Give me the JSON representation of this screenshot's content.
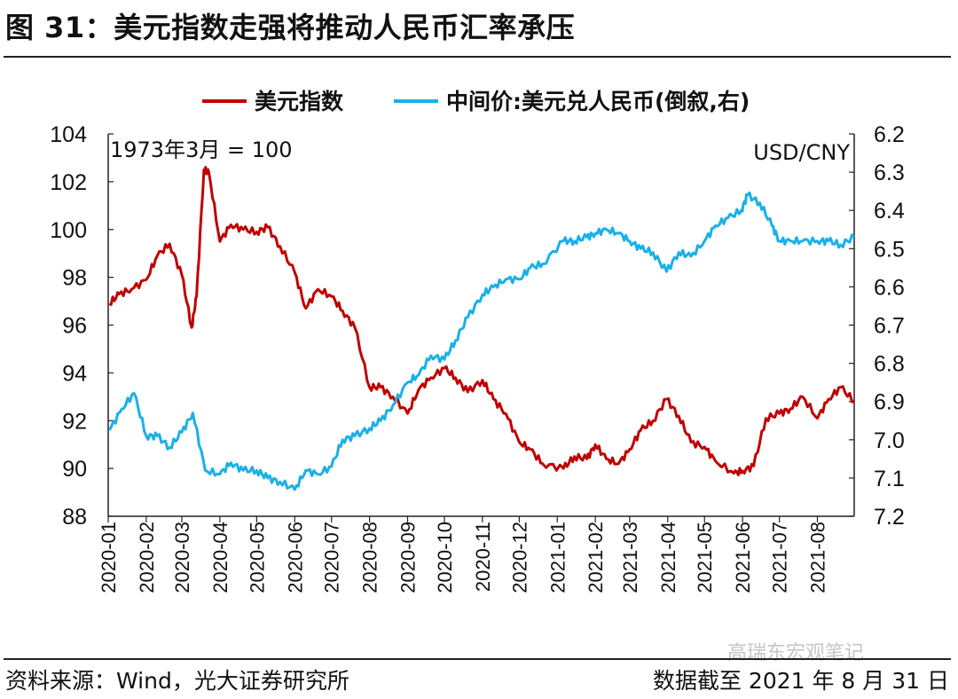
{
  "header": {
    "title": "图 31：美元指数走强将推动人民币汇率承压"
  },
  "footer": {
    "source": "资料来源：Wind，光大证券研究所",
    "date_note": "数据截至 2021 年 8 月 31 日",
    "watermark": "高瑞东宏观笔记"
  },
  "colors": {
    "dxy": "#c00000",
    "cny": "#1ab0e8"
  },
  "chart_data": {
    "type": "line",
    "annotations": {
      "left_note": "1973年3月 = 100",
      "right_unit": "USD/CNY"
    },
    "legend": {
      "placement": "top",
      "items": [
        "美元指数",
        "中间价:美元兑人民币(倒叙,右)"
      ]
    },
    "x_tick_labels": [
      "2020-01",
      "2020-02",
      "2020-03",
      "2020-04",
      "2020-05",
      "2020-06",
      "2020-07",
      "2020-08",
      "2020-09",
      "2020-10",
      "2020-11",
      "2020-12",
      "2021-01",
      "2021-02",
      "2021-03",
      "2021-04",
      "2021-05",
      "2021-06",
      "2021-07",
      "2021-08"
    ],
    "x_range": [
      "2020-01-01",
      "2021-08-31"
    ],
    "y_left": {
      "range": [
        88,
        104
      ],
      "ticks": [
        104,
        102,
        100,
        98,
        96,
        94,
        92,
        90,
        88
      ]
    },
    "y_right": {
      "range": [
        6.2,
        7.2
      ],
      "inverted": true,
      "ticks": [
        6.2,
        6.3,
        6.4,
        6.5,
        6.6,
        6.7,
        6.8,
        6.9,
        7.0,
        7.1,
        7.2
      ]
    },
    "series": [
      {
        "name": "美元指数",
        "axis": "left",
        "x": [
          "2020-01-02",
          "2020-01-10",
          "2020-01-20",
          "2020-02-01",
          "2020-02-10",
          "2020-02-20",
          "2020-03-01",
          "2020-03-09",
          "2020-03-13",
          "2020-03-19",
          "2020-03-23",
          "2020-04-01",
          "2020-04-10",
          "2020-04-20",
          "2020-05-01",
          "2020-05-10",
          "2020-05-20",
          "2020-06-01",
          "2020-06-10",
          "2020-06-20",
          "2020-07-01",
          "2020-07-10",
          "2020-07-20",
          "2020-08-01",
          "2020-08-10",
          "2020-08-20",
          "2020-09-01",
          "2020-09-10",
          "2020-09-20",
          "2020-10-01",
          "2020-10-10",
          "2020-10-20",
          "2020-11-01",
          "2020-11-10",
          "2020-11-20",
          "2020-12-01",
          "2020-12-10",
          "2020-12-20",
          "2021-01-06",
          "2021-01-15",
          "2021-01-25",
          "2021-02-01",
          "2021-02-10",
          "2021-02-20",
          "2021-03-01",
          "2021-03-10",
          "2021-03-20",
          "2021-03-31",
          "2021-04-10",
          "2021-04-20",
          "2021-05-01",
          "2021-05-10",
          "2021-05-25",
          "2021-06-01",
          "2021-06-10",
          "2021-06-20",
          "2021-07-01",
          "2021-07-10",
          "2021-07-20",
          "2021-08-01",
          "2021-08-10",
          "2021-08-20",
          "2021-08-31"
        ],
        "values": [
          96.9,
          97.3,
          97.5,
          97.9,
          98.9,
          99.4,
          98.1,
          95.9,
          97.2,
          102.5,
          102.4,
          99.5,
          100.2,
          100.0,
          99.9,
          100.1,
          99.3,
          98.2,
          96.7,
          97.5,
          97.2,
          96.6,
          95.9,
          93.4,
          93.4,
          93.0,
          92.3,
          93.3,
          93.8,
          94.2,
          93.8,
          93.2,
          93.7,
          92.9,
          92.3,
          91.1,
          90.8,
          90.2,
          90.0,
          90.5,
          90.4,
          91.0,
          90.4,
          90.2,
          90.8,
          91.6,
          92.0,
          92.9,
          92.2,
          91.1,
          90.9,
          90.3,
          89.8,
          89.9,
          90.1,
          92.1,
          92.3,
          92.5,
          93.0,
          92.1,
          92.9,
          93.4,
          92.8
        ]
      },
      {
        "name": "中间价:美元兑人民币(倒叙,右)",
        "axis": "right",
        "x": [
          "2020-01-02",
          "2020-01-12",
          "2020-01-22",
          "2020-02-01",
          "2020-02-10",
          "2020-02-20",
          "2020-03-01",
          "2020-03-10",
          "2020-03-20",
          "2020-04-01",
          "2020-04-10",
          "2020-04-20",
          "2020-05-01",
          "2020-05-10",
          "2020-05-20",
          "2020-06-01",
          "2020-06-10",
          "2020-06-20",
          "2020-07-01",
          "2020-07-10",
          "2020-07-20",
          "2020-08-01",
          "2020-08-10",
          "2020-08-20",
          "2020-09-01",
          "2020-09-10",
          "2020-09-20",
          "2020-10-01",
          "2020-10-10",
          "2020-10-20",
          "2020-11-01",
          "2020-11-10",
          "2020-11-20",
          "2020-12-01",
          "2020-12-10",
          "2020-12-20",
          "2021-01-06",
          "2021-01-15",
          "2021-01-25",
          "2021-02-01",
          "2021-02-10",
          "2021-02-20",
          "2021-03-01",
          "2021-03-10",
          "2021-03-20",
          "2021-03-31",
          "2021-04-10",
          "2021-04-20",
          "2021-05-01",
          "2021-05-10",
          "2021-05-20",
          "2021-05-31",
          "2021-06-05",
          "2021-06-15",
          "2021-06-25",
          "2021-07-01",
          "2021-07-10",
          "2021-07-20",
          "2021-08-01",
          "2021-08-10",
          "2021-08-20",
          "2021-08-31"
        ],
        "values": [
          6.975,
          6.92,
          6.878,
          6.99,
          6.99,
          7.02,
          6.98,
          6.93,
          7.08,
          7.09,
          7.06,
          7.08,
          7.08,
          7.1,
          7.11,
          7.13,
          7.08,
          7.09,
          7.07,
          7.0,
          6.99,
          6.97,
          6.95,
          6.91,
          6.85,
          6.83,
          6.78,
          6.79,
          6.74,
          6.68,
          6.62,
          6.6,
          6.58,
          6.58,
          6.55,
          6.54,
          6.48,
          6.48,
          6.47,
          6.46,
          6.45,
          6.46,
          6.48,
          6.5,
          6.51,
          6.56,
          6.51,
          6.52,
          6.48,
          6.44,
          6.42,
          6.4,
          6.36,
          6.38,
          6.44,
          6.48,
          6.48,
          6.48,
          6.48,
          6.48,
          6.49,
          6.47
        ]
      }
    ]
  }
}
